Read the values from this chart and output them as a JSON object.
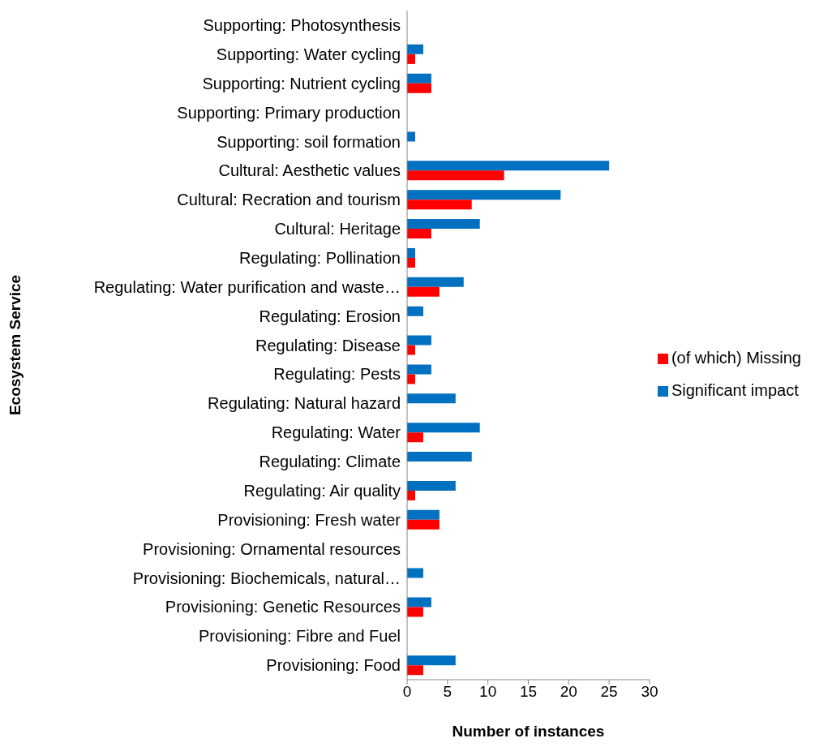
{
  "chart_data": {
    "type": "bar",
    "orientation": "horizontal",
    "xlabel": "Number of instances",
    "ylabel": "Ecosystem Service",
    "categories": [
      "Supporting: Photosynthesis",
      "Supporting: Water cycling",
      "Supporting: Nutrient cycling",
      "Supporting: Primary production",
      "Supporting: soil formation",
      "Cultural: Aesthetic values",
      "Cultural: Recration and tourism",
      "Cultural: Heritage",
      "Regulating: Pollination",
      "Regulating: Water purification and waste…",
      "Regulating: Erosion",
      "Regulating: Disease",
      "Regulating: Pests",
      "Regulating: Natural hazard",
      "Regulating: Water",
      "Regulating: Climate",
      "Regulating: Air quality",
      "Provisioning: Fresh water",
      "Provisioning: Ornamental resources",
      "Provisioning: Biochemicals, natural…",
      "Provisioning: Genetic Resources",
      "Provisioning: Fibre and Fuel",
      "Provisioning: Food"
    ],
    "series": [
      {
        "name": "Significant impact",
        "color": "#0070c0",
        "values": [
          0,
          2,
          3,
          0,
          1,
          25,
          19,
          9,
          1,
          7,
          2,
          3,
          3,
          6,
          9,
          8,
          6,
          4,
          0,
          2,
          3,
          0,
          6
        ]
      },
      {
        "name": "(of which) Missing",
        "color": "#ff0000",
        "values": [
          0,
          1,
          3,
          0,
          0,
          12,
          8,
          3,
          1,
          4,
          0,
          1,
          1,
          0,
          2,
          0,
          1,
          4,
          0,
          0,
          2,
          0,
          2
        ]
      }
    ],
    "xlim": [
      0,
      30
    ],
    "xticks": [
      0,
      5,
      10,
      15,
      20,
      25,
      30
    ],
    "legend": "right"
  }
}
